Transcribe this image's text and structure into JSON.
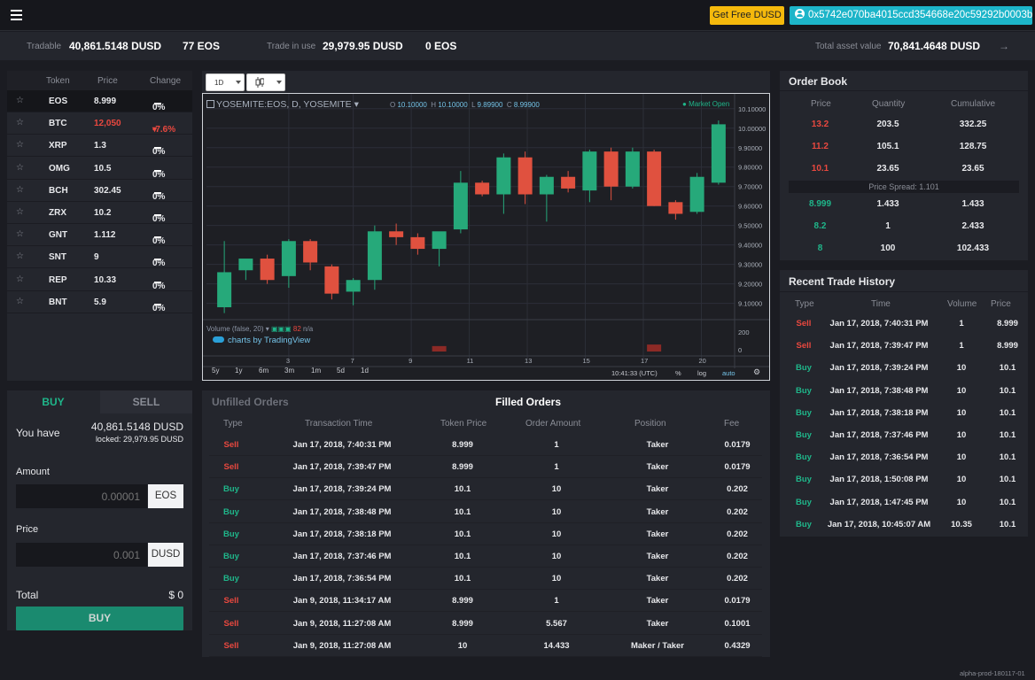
{
  "topbar": {
    "free_label": "Get Free DUSD",
    "address": "0x5742e070ba4015ccd354668e20c59292b0003b9a"
  },
  "stats": {
    "tradable_label": "Tradable",
    "tradable_dusd": "40,861.5148 DUSD",
    "tradable_eos": "77 EOS",
    "inuse_label": "Trade in use",
    "inuse_dusd": "29,979.95 DUSD",
    "inuse_eos": "0 EOS",
    "total_label": "Total asset value",
    "total_value": "70,841.4648 DUSD",
    "arrow": "→"
  },
  "tokens": {
    "headers": [
      "Token",
      "Price",
      "Change"
    ],
    "rows": [
      {
        "token": "EOS",
        "price": "8.999",
        "change": "0%",
        "dir": "flat"
      },
      {
        "token": "BTC",
        "price": "12,050",
        "change": "-7.6%",
        "dir": "down"
      },
      {
        "token": "XRP",
        "price": "1.3",
        "change": "0%",
        "dir": "flat"
      },
      {
        "token": "OMG",
        "price": "10.5",
        "change": "0%",
        "dir": "flat"
      },
      {
        "token": "BCH",
        "price": "302.45",
        "change": "0%",
        "dir": "flat"
      },
      {
        "token": "ZRX",
        "price": "10.2",
        "change": "0%",
        "dir": "flat"
      },
      {
        "token": "GNT",
        "price": "1.112",
        "change": "0%",
        "dir": "flat"
      },
      {
        "token": "SNT",
        "price": "9",
        "change": "0%",
        "dir": "flat"
      },
      {
        "token": "REP",
        "price": "10.33",
        "change": "0%",
        "dir": "flat"
      },
      {
        "token": "BNT",
        "price": "5.9",
        "change": "0%",
        "dir": "flat"
      }
    ]
  },
  "trade": {
    "buy_tab": "BUY",
    "sell_tab": "SELL",
    "you_have": "You have",
    "balance": "40,861.5148 DUSD",
    "locked": "locked: 29,979.95 DUSD",
    "amount_label": "Amount",
    "amount_placeholder": "0.00001",
    "amount_unit": "EOS",
    "price_label": "Price",
    "price_placeholder": "0.001",
    "price_unit": "DUSD",
    "total_label": "Total",
    "total_value": "$ 0",
    "buy_button": "BUY"
  },
  "chart_toolbar": {
    "interval": "1D"
  },
  "chart_data": {
    "type": "candlestick",
    "title": "YOSEMITE:EOS, D, YOSEMITE",
    "ohlc_label": {
      "o": "O",
      "o_val": "10.10000",
      "h": "H",
      "h_val": "10.10000",
      "l": "L",
      "l_val": "9.89900",
      "c": "C",
      "c_val": "8.99900"
    },
    "status": "Market Open",
    "ylim": [
      9.03,
      10.14
    ],
    "y_ticks": [
      "10.10000",
      "10.00000",
      "9.90000",
      "9.80000",
      "9.70000",
      "9.60000",
      "9.50000",
      "9.40000",
      "9.30000",
      "9.20000",
      "9.10000"
    ],
    "x_ticks": [
      "3",
      "7",
      "9",
      "11",
      "13",
      "15",
      "17",
      "20"
    ],
    "candles": [
      {
        "o": 9.08,
        "h": 9.42,
        "l": 9.05,
        "c": 9.26
      },
      {
        "o": 9.27,
        "h": 9.32,
        "l": 9.22,
        "c": 9.33
      },
      {
        "o": 9.33,
        "h": 9.35,
        "l": 9.2,
        "c": 9.22
      },
      {
        "o": 9.24,
        "h": 9.43,
        "l": 9.18,
        "c": 9.42
      },
      {
        "o": 9.42,
        "h": 9.43,
        "l": 9.27,
        "c": 9.31
      },
      {
        "o": 9.29,
        "h": 9.3,
        "l": 9.12,
        "c": 9.15
      },
      {
        "o": 9.16,
        "h": 9.23,
        "l": 9.09,
        "c": 9.22
      },
      {
        "o": 9.22,
        "h": 9.5,
        "l": 9.17,
        "c": 9.47
      },
      {
        "o": 9.47,
        "h": 9.51,
        "l": 9.4,
        "c": 9.44
      },
      {
        "o": 9.44,
        "h": 9.46,
        "l": 9.35,
        "c": 9.38
      },
      {
        "o": 9.38,
        "h": 9.46,
        "l": 9.29,
        "c": 9.47
      },
      {
        "o": 9.48,
        "h": 9.78,
        "l": 9.46,
        "c": 9.72
      },
      {
        "o": 9.72,
        "h": 9.73,
        "l": 9.65,
        "c": 9.66
      },
      {
        "o": 9.66,
        "h": 9.87,
        "l": 9.56,
        "c": 9.85
      },
      {
        "o": 9.85,
        "h": 9.88,
        "l": 9.61,
        "c": 9.66
      },
      {
        "o": 9.66,
        "h": 9.76,
        "l": 9.52,
        "c": 9.75
      },
      {
        "o": 9.75,
        "h": 9.78,
        "l": 9.67,
        "c": 9.69
      },
      {
        "o": 9.68,
        "h": 9.89,
        "l": 9.62,
        "c": 9.88
      },
      {
        "o": 9.88,
        "h": 9.9,
        "l": 9.63,
        "c": 9.7
      },
      {
        "o": 9.7,
        "h": 9.9,
        "l": 9.69,
        "c": 9.88
      },
      {
        "o": 9.88,
        "h": 9.89,
        "l": 9.6,
        "c": 9.6
      },
      {
        "o": 9.62,
        "h": 9.63,
        "l": 9.53,
        "c": 9.56
      },
      {
        "o": 9.57,
        "h": 9.77,
        "l": 9.56,
        "c": 9.75
      },
      {
        "o": 9.72,
        "h": 10.04,
        "l": 9.71,
        "c": 10.02
      }
    ],
    "volume_label": "Volume (false, 20)",
    "volume_value": "82",
    "volume_na": "n/a",
    "volume_ticks": [
      "200",
      "0"
    ],
    "volume": [
      0,
      0,
      0,
      0,
      0,
      0,
      0,
      0,
      0,
      0,
      35,
      0,
      0,
      0,
      0,
      0,
      0,
      0,
      0,
      0,
      45,
      0,
      0,
      0
    ],
    "branding": "charts by TradingView",
    "timeframes": [
      "5y",
      "1y",
      "6m",
      "3m",
      "1m",
      "5d",
      "1d"
    ],
    "clock": "10:41:33 (UTC)",
    "options": [
      "%",
      "log",
      "auto"
    ]
  },
  "orderbook": {
    "title": "Order Book",
    "headers": [
      "Price",
      "Quantity",
      "Cumulative"
    ],
    "asks": [
      [
        "13.2",
        "203.5",
        "332.25"
      ],
      [
        "11.2",
        "105.1",
        "128.75"
      ],
      [
        "10.1",
        "23.65",
        "23.65"
      ]
    ],
    "spread": "Price Spread: 1.101",
    "bids": [
      [
        "8.999",
        "1.433",
        "1.433"
      ],
      [
        "8.2",
        "1",
        "2.433"
      ],
      [
        "8",
        "100",
        "102.433"
      ]
    ]
  },
  "history": {
    "title": "Recent Trade History",
    "headers": [
      "Type",
      "Time",
      "Volume",
      "Price"
    ],
    "rows": [
      [
        "Sell",
        "Jan 17, 2018, 7:40:31 PM",
        "1",
        "8.999"
      ],
      [
        "Sell",
        "Jan 17, 2018, 7:39:47 PM",
        "1",
        "8.999"
      ],
      [
        "Buy",
        "Jan 17, 2018, 7:39:24 PM",
        "10",
        "10.1"
      ],
      [
        "Buy",
        "Jan 17, 2018, 7:38:48 PM",
        "10",
        "10.1"
      ],
      [
        "Buy",
        "Jan 17, 2018, 7:38:18 PM",
        "10",
        "10.1"
      ],
      [
        "Buy",
        "Jan 17, 2018, 7:37:46 PM",
        "10",
        "10.1"
      ],
      [
        "Buy",
        "Jan 17, 2018, 7:36:54 PM",
        "10",
        "10.1"
      ],
      [
        "Buy",
        "Jan 17, 2018, 1:50:08 PM",
        "10",
        "10.1"
      ],
      [
        "Buy",
        "Jan 17, 2018, 1:47:45 PM",
        "10",
        "10.1"
      ],
      [
        "Buy",
        "Jan 17, 2018, 10:45:07 AM",
        "10.35",
        "10.1"
      ]
    ]
  },
  "orders": {
    "tab_unfilled": "Unfilled Orders",
    "tab_filled": "Filled Orders",
    "headers": [
      "Type",
      "Transaction Time",
      "Token Price",
      "Order Amount",
      "Position",
      "Fee"
    ],
    "rows": [
      [
        "Sell",
        "Jan 17, 2018, 7:40:31 PM",
        "8.999",
        "1",
        "Taker",
        "0.0179"
      ],
      [
        "Sell",
        "Jan 17, 2018, 7:39:47 PM",
        "8.999",
        "1",
        "Taker",
        "0.0179"
      ],
      [
        "Buy",
        "Jan 17, 2018, 7:39:24 PM",
        "10.1",
        "10",
        "Taker",
        "0.202"
      ],
      [
        "Buy",
        "Jan 17, 2018, 7:38:48 PM",
        "10.1",
        "10",
        "Taker",
        "0.202"
      ],
      [
        "Buy",
        "Jan 17, 2018, 7:38:18 PM",
        "10.1",
        "10",
        "Taker",
        "0.202"
      ],
      [
        "Buy",
        "Jan 17, 2018, 7:37:46 PM",
        "10.1",
        "10",
        "Taker",
        "0.202"
      ],
      [
        "Buy",
        "Jan 17, 2018, 7:36:54 PM",
        "10.1",
        "10",
        "Taker",
        "0.202"
      ],
      [
        "Sell",
        "Jan 9, 2018, 11:34:17 AM",
        "8.999",
        "1",
        "Taker",
        "0.0179"
      ],
      [
        "Sell",
        "Jan 9, 2018, 11:27:08 AM",
        "8.999",
        "5.567",
        "Taker",
        "0.1001"
      ],
      [
        "Sell",
        "Jan 9, 2018, 11:27:08 AM",
        "10",
        "14.433",
        "Maker / Taker",
        "0.4329"
      ]
    ]
  },
  "footer": {
    "version": "alpha-prod-180117-01"
  },
  "colors": {
    "buy": "#1fb68a",
    "sell": "#e9483f",
    "accent": "#1db5c9",
    "gold": "#f5b90c",
    "candle_up": "#26a97a",
    "candle_down": "#e0513f"
  }
}
